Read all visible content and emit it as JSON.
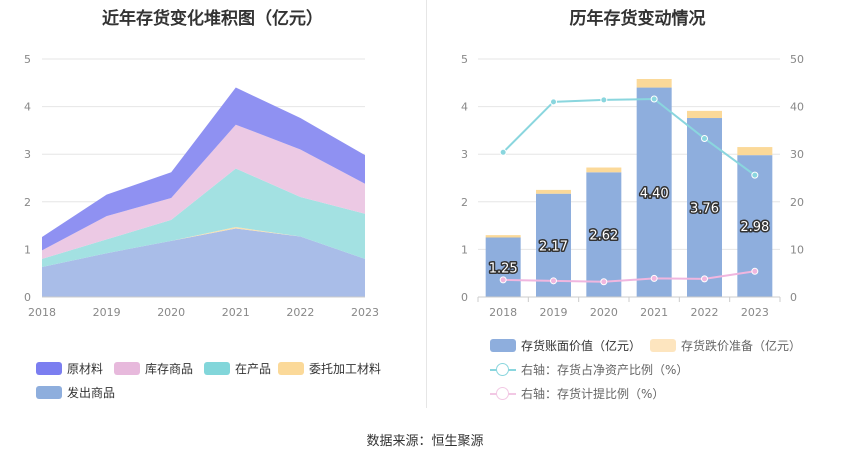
{
  "left_title": "近年存货变化堆积图（亿元）",
  "right_title": "历年存货变动情况",
  "source": "数据来源：恒生聚源",
  "colors": {
    "raw": "#8f91f2",
    "inventory": "#ecc9e4",
    "wip": "#a3e1e2",
    "outsourced": "#f7e0b2",
    "shipped": "#a9bde8",
    "bar_book": "#8eaedd",
    "bar_impair": "#fbd999",
    "line_ratio": "#8ad6de",
    "line_provision": "#f0b6df"
  },
  "chart_data": [
    {
      "type": "area",
      "stacked": true,
      "title": "近年存货变化堆积图（亿元）",
      "categories": [
        "2018",
        "2019",
        "2020",
        "2021",
        "2022",
        "2023"
      ],
      "y_ticks": [
        "0",
        "1",
        "2",
        "3",
        "4",
        "5"
      ],
      "ylim": [
        0,
        5
      ],
      "series": [
        {
          "name": "发出商品",
          "key": "shipped",
          "values": [
            0.63,
            0.92,
            1.18,
            1.44,
            1.27,
            0.8
          ]
        },
        {
          "name": "委托加工材料",
          "key": "outsourced",
          "values": [
            0.0,
            0.0,
            0.0,
            0.03,
            0.0,
            0.0
          ]
        },
        {
          "name": "在产品",
          "key": "wip",
          "values": [
            0.17,
            0.29,
            0.44,
            1.23,
            0.83,
            0.95
          ]
        },
        {
          "name": "库存商品",
          "key": "inventory",
          "values": [
            0.18,
            0.49,
            0.46,
            0.92,
            1.0,
            0.63
          ]
        },
        {
          "name": "原材料",
          "key": "raw",
          "values": [
            0.28,
            0.45,
            0.54,
            0.78,
            0.66,
            0.6
          ]
        }
      ],
      "legend": [
        {
          "name": "原材料",
          "key": "raw"
        },
        {
          "name": "库存商品",
          "key": "inventory"
        },
        {
          "name": "在产品",
          "key": "wip"
        },
        {
          "name": "委托加工材料",
          "key": "outsourced"
        },
        {
          "name": "发出商品",
          "key": "shipped"
        }
      ],
      "legend_position": "bottom",
      "grid": true
    },
    {
      "type": "bar",
      "title": "历年存货变动情况",
      "categories": [
        "2018",
        "2019",
        "2020",
        "2021",
        "2022",
        "2023"
      ],
      "y_ticks": [
        "0",
        "1",
        "2",
        "3",
        "4",
        "5"
      ],
      "y2_ticks": [
        "0",
        "10",
        "20",
        "30",
        "40",
        "50"
      ],
      "ylim": [
        0,
        5
      ],
      "y2lim": [
        0,
        50
      ],
      "bars": [
        {
          "name": "存货账面价值（亿元）",
          "values": [
            1.25,
            2.17,
            2.62,
            4.4,
            3.76,
            2.98
          ],
          "labels": [
            "1.25",
            "2.17",
            "2.62",
            "4.40",
            "3.76",
            "2.98"
          ]
        },
        {
          "name": "存货跌价准备（亿元）",
          "values": [
            0.05,
            0.08,
            0.1,
            0.18,
            0.15,
            0.17
          ]
        }
      ],
      "lines": [
        {
          "name": "右轴：存货占净资产比例（%）",
          "values": [
            30.4,
            41.0,
            41.4,
            41.6,
            33.3,
            25.6
          ]
        },
        {
          "name": "右轴：存货计提比例（%）",
          "values": [
            3.6,
            3.4,
            3.2,
            3.9,
            3.8,
            5.4
          ]
        }
      ],
      "legend_position": "bottom",
      "grid": true
    }
  ]
}
